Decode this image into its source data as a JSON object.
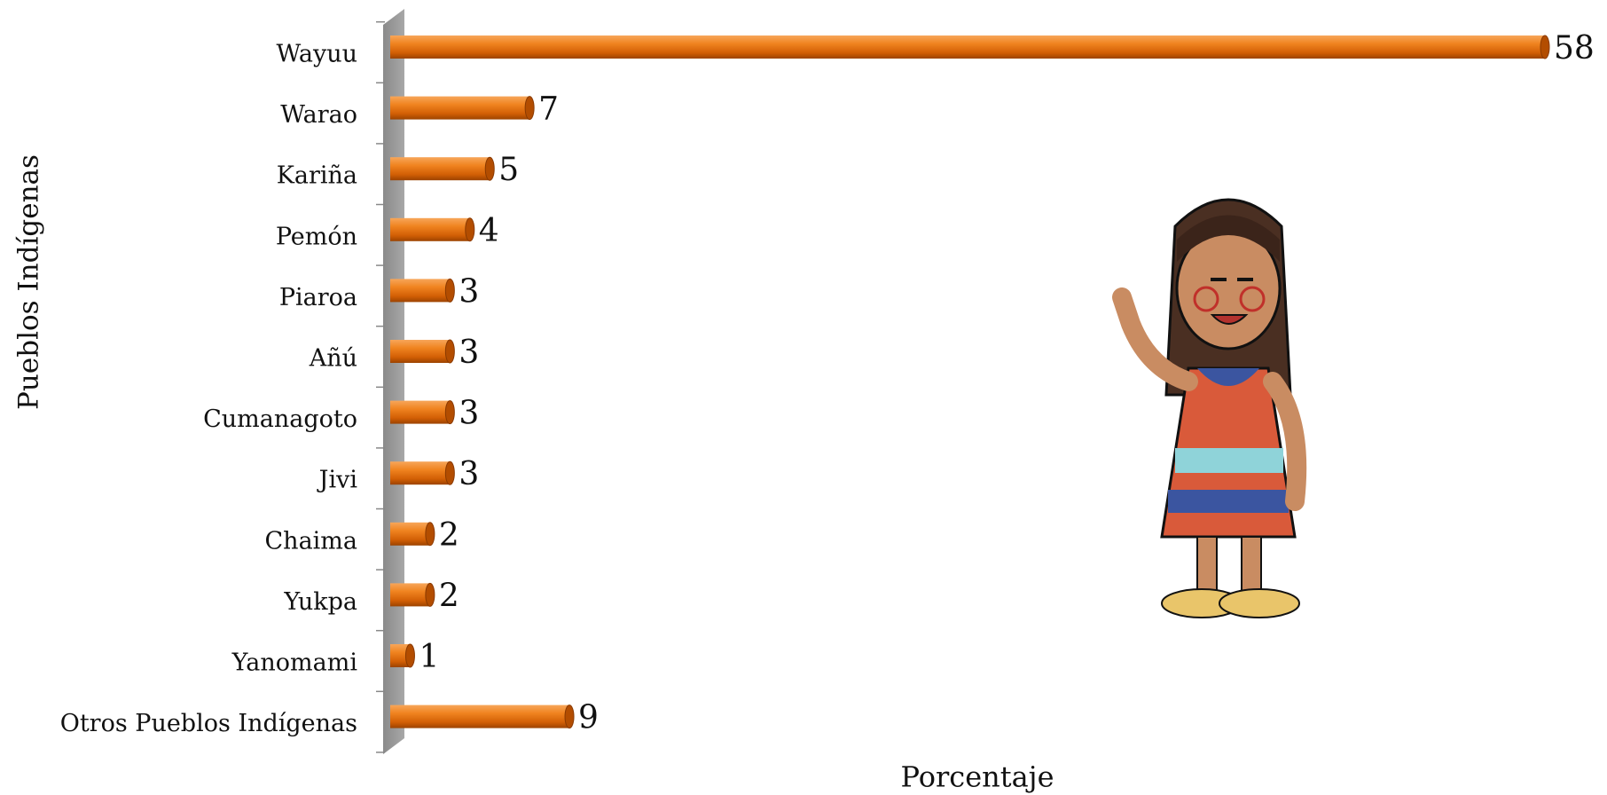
{
  "chart_data": {
    "type": "bar",
    "orientation": "horizontal",
    "y_label": "Pueblos Indígenas",
    "x_label": "Porcentaje",
    "categories": [
      "Wayuu",
      "Warao",
      "Kariña",
      "Pemón",
      "Piaroa",
      "Añú",
      "Cumanagoto",
      "Jivi",
      "Chaima",
      "Yukpa",
      "Yanomami",
      "Otros Pueblos Indígenas"
    ],
    "values": [
      58,
      7,
      5,
      4,
      3,
      3,
      3,
      3,
      2,
      2,
      1,
      9
    ],
    "color": "#e8700f"
  }
}
